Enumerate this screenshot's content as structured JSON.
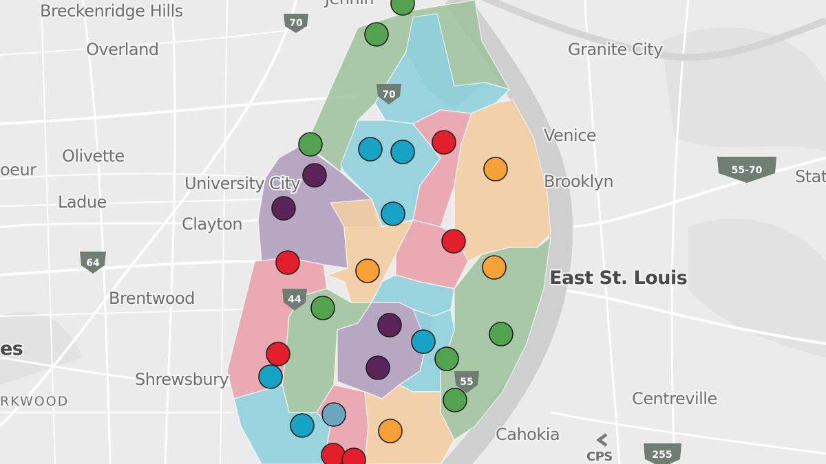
{
  "places": [
    "Breckenridge Hills",
    "Jennin",
    "Overland",
    "Granite City",
    "Olivette",
    "Venice",
    "oeur",
    "University City",
    "Brooklyn",
    "Stat",
    "Ladue",
    "Clayton",
    "East St. Louis",
    "Brentwood",
    "es",
    "Shrewsbury",
    "RKWOOD",
    "Centreville",
    "Cahokia",
    "CPS"
  ],
  "shields": [
    "70",
    "70",
    "64",
    "44",
    "55",
    "255",
    "55-70"
  ]
}
